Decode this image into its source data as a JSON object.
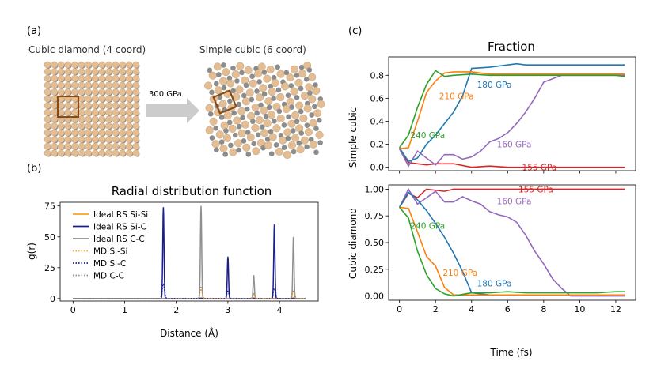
{
  "panel_labels": {
    "a": "(a)",
    "b": "(b)",
    "c": "(c)"
  },
  "panel_a": {
    "left_caption": "Cubic diamond (4 coord)",
    "right_caption": "Simple cubic (6 coord)",
    "arrow_label": "300 GPa",
    "colors": {
      "si": "#e3bd93",
      "c": "#8c8c8c",
      "box": "#8a4a12",
      "arrow": "#cccccc"
    }
  },
  "chart_data": [
    {
      "id": "rdf",
      "type": "line",
      "title": "Radial distribution function",
      "xlabel": "Distance (Å)",
      "ylabel": "g(r)",
      "xlim": [
        -0.25,
        4.75
      ],
      "ylim": [
        -2,
        78
      ],
      "xticks": [
        0,
        1,
        2,
        3,
        4
      ],
      "yticks": [
        0,
        25,
        50,
        75
      ],
      "legend_position": "upper-left",
      "series": [
        {
          "name": "Ideal RS Si-Si",
          "color": "#f5a623",
          "style": "solid",
          "peaks": [
            [
              2.48,
              0.8
            ],
            [
              3.5,
              0.8
            ],
            [
              4.27,
              0.8
            ]
          ]
        },
        {
          "name": "Ideal RS Si-C",
          "color": "#1a1f8a",
          "style": "solid",
          "peaks": [
            [
              1.75,
              74
            ],
            [
              3.0,
              34
            ],
            [
              3.9,
              60
            ]
          ]
        },
        {
          "name": "Ideal RS C-C",
          "color": "#8f8f8f",
          "style": "solid",
          "peaks": [
            [
              2.48,
              75
            ],
            [
              3.5,
              19
            ],
            [
              4.27,
              50
            ]
          ]
        },
        {
          "name": "MD Si-Si",
          "color": "#f5a623",
          "style": "dotted",
          "peaks": [
            [
              2.48,
              8
            ],
            [
              3.5,
              3
            ],
            [
              4.27,
              6
            ]
          ]
        },
        {
          "name": "MD Si-C",
          "color": "#1a1f8a",
          "style": "dotted",
          "peaks": [
            [
              1.75,
              12
            ],
            [
              3.0,
              6
            ],
            [
              3.9,
              8
            ]
          ]
        },
        {
          "name": "MD C-C",
          "color": "#8f8f8f",
          "style": "dotted",
          "peaks": [
            [
              2.48,
              10
            ],
            [
              3.5,
              4
            ],
            [
              4.27,
              7
            ]
          ]
        }
      ]
    },
    {
      "id": "simple-cubic",
      "type": "line",
      "title": "Fraction",
      "ylabel": "Simple cubic",
      "xlim": [
        -0.6,
        13.1
      ],
      "ylim": [
        -0.03,
        0.96
      ],
      "xticks": [
        0,
        2,
        4,
        6,
        8,
        10,
        12
      ],
      "yticks": [
        0.0,
        0.2,
        0.4,
        0.6,
        0.8
      ],
      "series": [
        {
          "name": "155 GPa",
          "color": "#d62728",
          "label_at": [
            6.8,
            0.0
          ],
          "x": [
            0,
            0.5,
            1,
            1.5,
            2,
            2.5,
            3,
            4,
            5,
            6,
            7,
            8,
            9,
            10,
            11,
            12,
            12.5
          ],
          "y": [
            0.16,
            0.04,
            0.03,
            0.02,
            0.03,
            0.03,
            0.03,
            0.0,
            0.01,
            0.0,
            0.0,
            0.0,
            0.0,
            0.0,
            0.0,
            0.0,
            0.0
          ]
        },
        {
          "name": "160 GPa",
          "color": "#9467bd",
          "label_at": [
            5.4,
            0.2
          ],
          "x": [
            0,
            0.5,
            1,
            1.5,
            2,
            2.5,
            3,
            3.5,
            4,
            4.5,
            5,
            5.5,
            6,
            6.5,
            7,
            7.5,
            8,
            8.5,
            9,
            9.5,
            10,
            11,
            12,
            12.5
          ],
          "y": [
            0.16,
            0.01,
            0.14,
            0.08,
            0.02,
            0.11,
            0.11,
            0.07,
            0.09,
            0.14,
            0.22,
            0.25,
            0.3,
            0.38,
            0.48,
            0.6,
            0.74,
            0.77,
            0.8,
            0.8,
            0.8,
            0.8,
            0.8,
            0.8
          ]
        },
        {
          "name": "180 GPa",
          "color": "#1f77b4",
          "label_at": [
            4.3,
            0.72
          ],
          "x": [
            0,
            0.5,
            1,
            1.5,
            2,
            2.5,
            3,
            3.5,
            4,
            5,
            6,
            6.5,
            7,
            8,
            9,
            10,
            11,
            12,
            12.5
          ],
          "y": [
            0.17,
            0.05,
            0.08,
            0.2,
            0.28,
            0.38,
            0.48,
            0.62,
            0.86,
            0.87,
            0.89,
            0.9,
            0.89,
            0.89,
            0.89,
            0.89,
            0.89,
            0.89,
            0.89
          ]
        },
        {
          "name": "210 GPa",
          "color": "#ff7f0e",
          "label_at": [
            2.2,
            0.62
          ],
          "x": [
            0,
            0.5,
            1,
            1.5,
            2,
            2.5,
            3,
            4,
            5,
            6,
            7,
            8,
            9,
            10,
            11,
            12,
            12.5
          ],
          "y": [
            0.16,
            0.17,
            0.4,
            0.65,
            0.75,
            0.82,
            0.83,
            0.83,
            0.81,
            0.81,
            0.81,
            0.81,
            0.81,
            0.81,
            0.81,
            0.81,
            0.81
          ]
        },
        {
          "name": "240 GPa",
          "color": "#2ca02c",
          "label_at": [
            0.6,
            0.28
          ],
          "x": [
            0,
            0.5,
            1,
            1.5,
            2,
            2.5,
            3,
            4,
            5,
            6,
            7,
            8,
            9,
            10,
            11,
            12,
            12.5
          ],
          "y": [
            0.17,
            0.28,
            0.52,
            0.72,
            0.84,
            0.79,
            0.8,
            0.81,
            0.8,
            0.8,
            0.8,
            0.8,
            0.8,
            0.8,
            0.8,
            0.8,
            0.79
          ]
        }
      ]
    },
    {
      "id": "cubic-diamond",
      "type": "line",
      "title": "",
      "xlabel": "Time (fs)",
      "ylabel": "Cubic diamond",
      "xlim": [
        -0.6,
        13.1
      ],
      "ylim": [
        -0.04,
        1.04
      ],
      "xticks": [
        0,
        2,
        4,
        6,
        8,
        10,
        12
      ],
      "yticks": [
        0.0,
        0.25,
        0.5,
        0.75,
        1.0
      ],
      "series": [
        {
          "name": "155 GPa",
          "color": "#d62728",
          "label_at": [
            6.6,
            1.0
          ],
          "x": [
            0,
            0.5,
            1,
            1.5,
            2,
            2.5,
            3,
            4,
            5,
            6,
            7,
            8,
            9,
            10,
            11,
            12,
            12.5
          ],
          "y": [
            0.83,
            0.96,
            0.92,
            1.0,
            0.99,
            0.98,
            1.0,
            1.0,
            1.0,
            1.0,
            1.0,
            1.0,
            1.0,
            1.0,
            1.0,
            1.0,
            1.0
          ]
        },
        {
          "name": "160 GPa",
          "color": "#9467bd",
          "label_at": [
            5.4,
            0.89
          ],
          "x": [
            0,
            0.5,
            1,
            1.5,
            2,
            2.5,
            3,
            3.5,
            4,
            4.5,
            5,
            5.5,
            6,
            6.5,
            7,
            7.5,
            8,
            8.5,
            9,
            9.5,
            10,
            11,
            12,
            12.5
          ],
          "y": [
            0.83,
            1.0,
            0.86,
            0.92,
            0.98,
            0.88,
            0.88,
            0.93,
            0.89,
            0.86,
            0.79,
            0.76,
            0.74,
            0.69,
            0.57,
            0.42,
            0.3,
            0.16,
            0.07,
            0.0,
            0.0,
            0.0,
            0.0,
            0.0
          ]
        },
        {
          "name": "180 GPa",
          "color": "#1f77b4",
          "label_at": [
            4.3,
            0.12
          ],
          "x": [
            0,
            0.5,
            1,
            1.5,
            2,
            2.5,
            3,
            3.5,
            4,
            5,
            6,
            7,
            8,
            9,
            10,
            11,
            12,
            12.5
          ],
          "y": [
            0.83,
            0.97,
            0.9,
            0.8,
            0.68,
            0.55,
            0.4,
            0.23,
            0.03,
            0.01,
            0.01,
            0.01,
            0.01,
            0.01,
            0.01,
            0.01,
            0.01,
            0.01
          ]
        },
        {
          "name": "210 GPa",
          "color": "#ff7f0e",
          "label_at": [
            2.4,
            0.22
          ],
          "x": [
            0,
            0.5,
            1,
            1.5,
            2,
            2.5,
            3,
            4,
            5,
            6,
            7,
            8,
            9,
            10,
            11,
            12,
            12.5
          ],
          "y": [
            0.83,
            0.82,
            0.6,
            0.37,
            0.28,
            0.08,
            0.01,
            0.01,
            0.01,
            0.01,
            0.01,
            0.01,
            0.01,
            0.01,
            0.01,
            0.01,
            0.01
          ]
        },
        {
          "name": "240 GPa",
          "color": "#2ca02c",
          "label_at": [
            0.6,
            0.66
          ],
          "x": [
            0,
            0.5,
            1,
            1.5,
            2,
            2.5,
            3,
            4,
            5,
            6,
            7,
            8,
            9,
            10,
            11,
            12,
            12.5
          ],
          "y": [
            0.83,
            0.73,
            0.42,
            0.2,
            0.07,
            0.02,
            0.0,
            0.03,
            0.03,
            0.04,
            0.03,
            0.03,
            0.03,
            0.03,
            0.03,
            0.04,
            0.04
          ]
        }
      ]
    }
  ]
}
